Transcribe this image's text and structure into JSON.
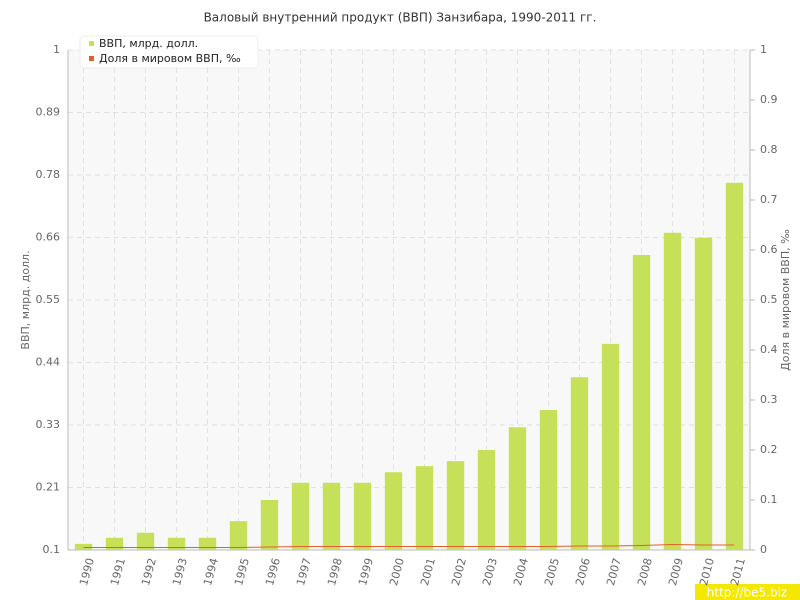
{
  "chart_data": {
    "type": "bar",
    "title": "Валовый внутренний продукт (ВВП) Занзибара, 1990-2011 гг.",
    "y_label": "ВВП, млрд. долл.",
    "y2_label": "Доля в мировом ВВП, ‰",
    "watermark": "http://be5.biz",
    "categories": [
      "1990",
      "1991",
      "1992",
      "1993",
      "1994",
      "1995",
      "1996",
      "1997",
      "1998",
      "1999",
      "2000",
      "2001",
      "2002",
      "2003",
      "2004",
      "2005",
      "2006",
      "2007",
      "2008",
      "2009",
      "2010",
      "2011"
    ],
    "series": [
      {
        "name": "ВВП, млрд. долл.",
        "type": "bar",
        "color": "#c6e05a",
        "values": [
          0.111,
          0.122,
          0.131,
          0.122,
          0.122,
          0.152,
          0.19,
          0.221,
          0.221,
          0.221,
          0.24,
          0.251,
          0.26,
          0.28,
          0.321,
          0.352,
          0.411,
          0.471,
          0.631,
          0.671,
          0.662,
          0.761
        ]
      },
      {
        "name": "Доля в мировом ВВП, ‰",
        "type": "line",
        "axis": "y2",
        "color": "#e0602a",
        "values": [
          0.005,
          0.005,
          0.005,
          0.005,
          0.005,
          0.005,
          0.006,
          0.007,
          0.007,
          0.007,
          0.007,
          0.007,
          0.007,
          0.007,
          0.007,
          0.007,
          0.008,
          0.008,
          0.009,
          0.011,
          0.01,
          0.01
        ]
      }
    ],
    "ylim": [
      0.1,
      1
    ],
    "yticks": [
      0.1,
      {
        "value": 0.2125,
        "label": "0.21"
      },
      {
        "value": 0.325,
        "label": "0.33"
      },
      {
        "value": 0.4375,
        "label": "0.44"
      },
      0.55,
      {
        "value": 0.6625,
        "label": "0.66"
      },
      {
        "value": 0.775,
        "label": "0.78"
      },
      {
        "value": 0.8875,
        "label": "0.89"
      },
      1
    ],
    "y2lim": [
      0,
      1
    ],
    "y2ticks": [
      0,
      0.1,
      0.2,
      0.3,
      0.4,
      0.5,
      0.6,
      0.7,
      0.8,
      0.9,
      1
    ],
    "grid": true,
    "legend": "top-left"
  }
}
